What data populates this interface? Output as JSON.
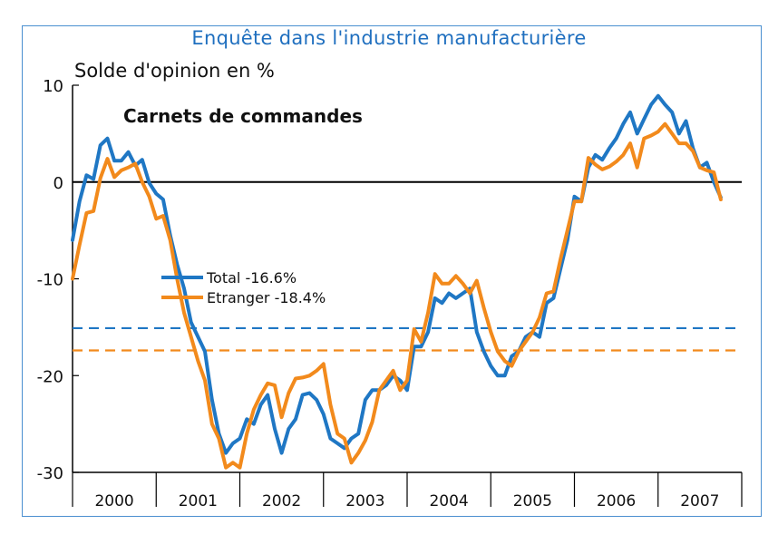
{
  "title": "Enquête dans l'industrie manufacturière",
  "ylabel": "Solde d'opinion en %",
  "subtitle": "Carnets de commandes",
  "colors": {
    "total": "#1f77c4",
    "etranger": "#f28a1c",
    "frame": "#4a8fd0",
    "title": "#1f6fbf"
  },
  "chart_data": {
    "type": "line",
    "title": "Enquête dans l'industrie manufacturière",
    "subtitle": "Carnets de commandes",
    "ylabel": "Solde d'opinion en %",
    "xlabel": "",
    "ylim": [
      -30,
      10
    ],
    "yticks": [
      10,
      0,
      -10,
      -20,
      -30
    ],
    "xlim": [
      2000,
      2008
    ],
    "year_labels": [
      "2000",
      "2001",
      "2002",
      "2003",
      "2004",
      "2005",
      "2006",
      "2007"
    ],
    "legend": [
      "Total -16.6%",
      "Etranger -18.4%"
    ],
    "legend_position": "center-left",
    "grid": false,
    "x": [
      2000.0,
      2000.083,
      2000.167,
      2000.25,
      2000.333,
      2000.417,
      2000.5,
      2000.583,
      2000.667,
      2000.75,
      2000.833,
      2000.917,
      2001.0,
      2001.083,
      2001.167,
      2001.25,
      2001.333,
      2001.417,
      2001.5,
      2001.583,
      2001.667,
      2001.75,
      2001.833,
      2001.917,
      2002.0,
      2002.083,
      2002.167,
      2002.25,
      2002.333,
      2002.417,
      2002.5,
      2002.583,
      2002.667,
      2002.75,
      2002.833,
      2002.917,
      2003.0,
      2003.083,
      2003.167,
      2003.25,
      2003.333,
      2003.417,
      2003.5,
      2003.583,
      2003.667,
      2003.75,
      2003.833,
      2003.917,
      2004.0,
      2004.083,
      2004.167,
      2004.25,
      2004.333,
      2004.417,
      2004.5,
      2004.583,
      2004.667,
      2004.75,
      2004.833,
      2004.917,
      2005.0,
      2005.083,
      2005.167,
      2005.25,
      2005.333,
      2005.417,
      2005.5,
      2005.583,
      2005.667,
      2005.75,
      2005.833,
      2005.917,
      2006.0,
      2006.083,
      2006.167,
      2006.25,
      2006.333,
      2006.417,
      2006.5,
      2006.583,
      2006.667,
      2006.75,
      2006.833,
      2006.917,
      2007.0,
      2007.083,
      2007.167,
      2007.25,
      2007.333,
      2007.417,
      2007.5,
      2007.583,
      2007.667,
      2007.75
    ],
    "series": [
      {
        "name": "Total -16.6%",
        "values": [
          -6,
          -2,
          0.7,
          0.3,
          3.8,
          4.5,
          2.2,
          2.2,
          3.1,
          1.7,
          2.3,
          -0.1,
          -1.2,
          -1.8,
          -5.5,
          -8.5,
          -11,
          -14.5,
          -16,
          -17.5,
          -22.5,
          -26,
          -28,
          -27,
          -26.5,
          -24.5,
          -25,
          -23,
          -22,
          -25.5,
          -28,
          -25.5,
          -24.5,
          -22,
          -21.8,
          -22.5,
          -24,
          -26.5,
          -27,
          -27.5,
          -26.5,
          -26,
          -22.5,
          -21.5,
          -21.5,
          -21,
          -20,
          -20.5,
          -21.5,
          -17,
          -17,
          -15.5,
          -12,
          -12.5,
          -11.5,
          -12,
          -11.5,
          -11,
          -15.5,
          -17.5,
          -19,
          -20,
          -20,
          -18,
          -17.5,
          -16,
          -15.5,
          -16,
          -12.5,
          -12,
          -9,
          -6,
          -1.5,
          -2,
          1.5,
          2.8,
          2.3,
          3.5,
          4.5,
          6,
          7.2,
          5,
          6.5,
          8,
          8.9,
          8,
          7.2,
          5,
          6.3,
          3.5,
          1.5,
          2,
          0,
          -1.6
        ]
      },
      {
        "name": "Etranger -18.4%",
        "values": [
          -10,
          -6.5,
          -3.2,
          -3,
          0.4,
          2.4,
          0.5,
          1.2,
          1.5,
          1.9,
          0,
          -1.5,
          -3.8,
          -3.5,
          -6,
          -10,
          -13.5,
          -16,
          -18.5,
          -20.5,
          -25,
          -26.5,
          -29.5,
          -29,
          -29.5,
          -26,
          -23.5,
          -22,
          -20.8,
          -21,
          -24.3,
          -21.8,
          -20.3,
          -20.2,
          -20,
          -19.5,
          -18.8,
          -23,
          -26,
          -26.5,
          -29,
          -28,
          -26.7,
          -24.8,
          -21.5,
          -20.5,
          -19.5,
          -21.5,
          -20.5,
          -15.2,
          -16.5,
          -13.5,
          -9.5,
          -10.5,
          -10.5,
          -9.7,
          -10.5,
          -11.5,
          -10.2,
          -13,
          -15.5,
          -17.5,
          -18.5,
          -19,
          -17.5,
          -16.5,
          -15.5,
          -14,
          -11.5,
          -11.3,
          -8,
          -5,
          -2,
          -2,
          2.5,
          1.8,
          1.3,
          1.6,
          2.1,
          2.8,
          4,
          1.5,
          4.5,
          4.8,
          5.2,
          6,
          5,
          4,
          4,
          3.2,
          1.5,
          1.2,
          1,
          -1.8
        ]
      }
    ],
    "reference_lines": [
      {
        "series": "Total -16.6%",
        "value": -15.1,
        "style": "dashed"
      },
      {
        "series": "Etranger -18.4%",
        "value": -17.4,
        "style": "dashed"
      }
    ]
  }
}
